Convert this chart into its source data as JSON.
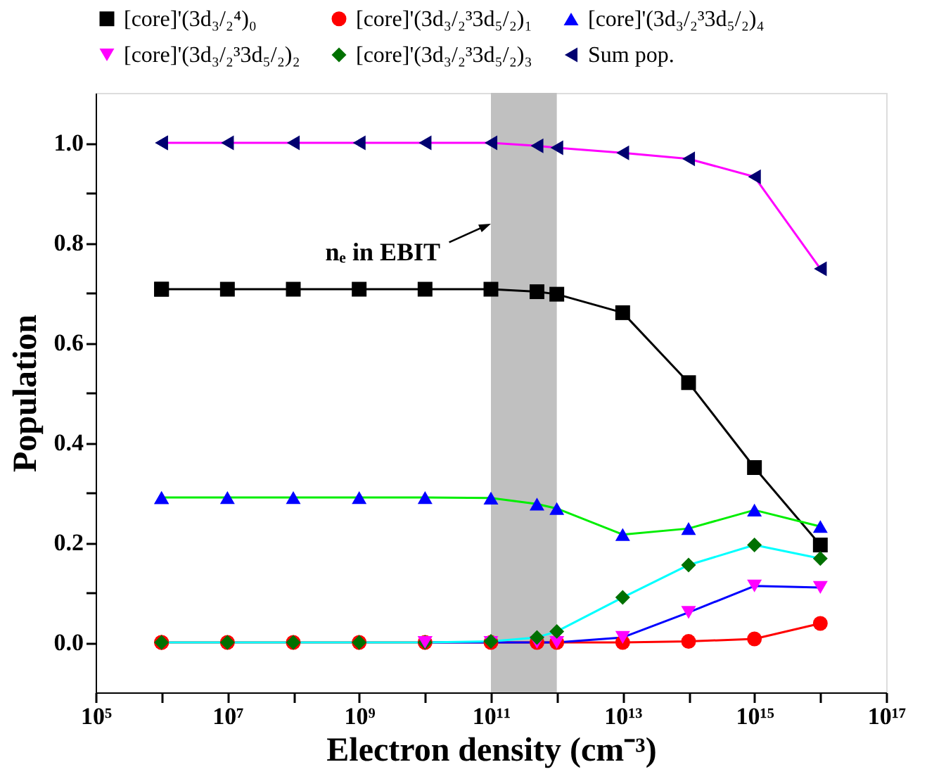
{
  "chart_data": {
    "type": "line",
    "xlabel": "Electron density (cm⁻³)",
    "ylabel": "Population",
    "log": "x",
    "grid": false,
    "legend": "top",
    "marker": "circle",
    "line_style": "solid",
    "x": [
      1000000.0,
      10000000.0,
      100000000.0,
      1000000000.0,
      10000000000.0,
      100000000000.0,
      500000000000.0,
      1000000000000.0,
      10000000000000.0,
      100000000000000.0,
      1000000000000000.0,
      1e+16
    ],
    "xlim": [
      100000.0,
      1e+17
    ],
    "xticks": [
      {
        "value": 100000.0,
        "label": "10⁵"
      },
      {
        "value": 1000000.0,
        "label": null
      },
      {
        "value": 10000000.0,
        "label": "10⁷"
      },
      {
        "value": 100000000.0,
        "label": null
      },
      {
        "value": 1000000000.0,
        "label": "10⁹"
      },
      {
        "value": 10000000000.0,
        "label": null
      },
      {
        "value": 100000000000.0,
        "label": "10¹¹"
      },
      {
        "value": 1000000000000.0,
        "label": null
      },
      {
        "value": 10000000000000.0,
        "label": "10¹³"
      },
      {
        "value": 100000000000000.0,
        "label": null
      },
      {
        "value": 1000000000000000.0,
        "label": "10¹⁵"
      },
      {
        "value": 1e+16,
        "label": null
      },
      {
        "value": 1e+17,
        "label": "10¹⁷"
      }
    ],
    "ylim": [
      -0.1,
      1.1
    ],
    "yticks": [
      {
        "value": 0,
        "label": "0.0"
      },
      {
        "value": 0.1,
        "label": null
      },
      {
        "value": 0.2,
        "label": "0.2"
      },
      {
        "value": 0.3,
        "label": null
      },
      {
        "value": 0.4,
        "label": "0.4"
      },
      {
        "value": 0.5,
        "label": null
      },
      {
        "value": 0.6,
        "label": "0.6"
      },
      {
        "value": 0.7,
        "label": null
      },
      {
        "value": 0.8,
        "label": "0.8"
      },
      {
        "value": 0.9,
        "label": null
      },
      {
        "value": 1.0,
        "label": "1.0"
      }
    ],
    "bands": [
      {
        "axis": "x",
        "from": 100000000000.0,
        "to": 1000000000000.0,
        "label": null,
        "color": "#c0c0c0"
      }
    ],
    "annotations": [
      "nₑ in EBIT"
    ],
    "series": [
      {
        "name": "[core]'(3d₃/₂⁴)₀",
        "color": "#000000",
        "marker": "square",
        "colors": [
          "#000000",
          "#000000",
          "#000000",
          "#000000",
          "#000000",
          "#000000",
          "#000000",
          "#000000",
          "#000000",
          "#000000",
          "#000000",
          "#000000"
        ],
        "values": [
          0.707,
          0.707,
          0.707,
          0.707,
          0.707,
          0.707,
          0.702,
          0.697,
          0.66,
          0.52,
          0.35,
          0.195
        ]
      },
      {
        "name": "[core]'(3d₃/₂³3d₅/₂)₁",
        "color": "#ff0000",
        "marker": "circle",
        "colors": [
          "#ff0000",
          "#ff0000",
          "#ff0000",
          "#ff0000",
          "#ff0000",
          "#ff0000",
          "#ff0000",
          "#ff0000",
          "#ff0000",
          "#ff0000",
          "#ff0000",
          "#ff0000"
        ],
        "values": [
          0,
          0,
          0,
          0,
          0,
          0,
          0,
          0,
          0,
          0.002,
          0.007,
          0.038
        ]
      },
      {
        "name": "[core]'(3d₃/₂³3d₅/₂)₄",
        "color": "#00ee00",
        "marker": "triangle",
        "colors": [
          "#0000ff",
          "#0000ff",
          "#0000ff",
          "#0000ff",
          "#0000ff",
          "#0000ff",
          "#0000ff",
          "#0000ff",
          "#0000ff",
          "#0000ff",
          "#0000ff",
          "#0000ff"
        ],
        "values": [
          0.29,
          0.29,
          0.29,
          0.29,
          0.29,
          0.289,
          0.277,
          0.268,
          0.216,
          0.228,
          0.265,
          0.232
        ]
      },
      {
        "name": "[core]'(3d₃/₂³3d₅/₂)₂",
        "color": "#0000ff",
        "marker": "triangle-down",
        "colors": [
          "#ff00ff",
          "#ff00ff",
          "#ff00ff",
          "#ff00ff",
          "#ff00ff",
          "#ff00ff",
          "#ff00ff",
          "#ff00ff",
          "#ff00ff",
          "#ff00ff",
          "#ff00ff",
          "#ff00ff"
        ],
        "values": [
          null,
          null,
          null,
          null,
          0,
          0,
          0,
          0,
          0.01,
          0.06,
          0.113,
          0.11
        ]
      },
      {
        "name": "[core]'(3d₃/₂³3d₅/₂)₃",
        "color": "#00ffff",
        "marker": "diamond",
        "colors": [
          "#007000",
          "#007000",
          "#007000",
          "#007000",
          "#007000",
          "#007000",
          "#007000",
          "#007000",
          "#007000",
          "#007000",
          "#007000",
          "#007000"
        ],
        "values": [
          0,
          0,
          0,
          0,
          0,
          0.002,
          0.01,
          0.022,
          0.09,
          0.155,
          0.195,
          0.168
        ]
      },
      {
        "name": "Sum pop.",
        "color": "#ff00ff",
        "marker": "triangle-left",
        "colors": [
          "#000070",
          "#000070",
          "#000070",
          "#000070",
          "#000070",
          "#000070",
          "#000070",
          "#000070",
          "#000070",
          "#000070",
          "#000070",
          "#000070"
        ],
        "values": [
          1.0,
          1.0,
          1.0,
          1.0,
          1.0,
          1.0,
          0.994,
          0.99,
          0.98,
          0.968,
          0.932,
          0.748
        ]
      }
    ]
  }
}
